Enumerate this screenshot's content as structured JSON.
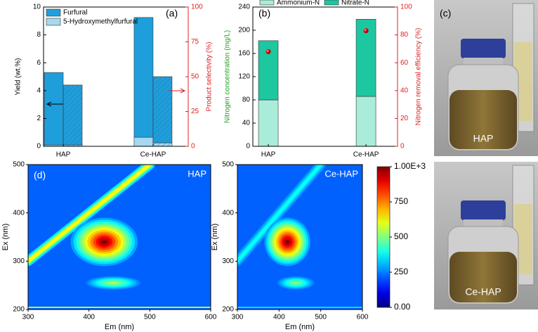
{
  "chart_data": [
    {
      "type": "bar",
      "panel": "(a)",
      "categories": [
        "HAP",
        "Ce-HAP"
      ],
      "ylabel": "Yield (wt.%)",
      "y2label": "Product selectivity (%)",
      "ylim": [
        0,
        10
      ],
      "yticks": [
        0,
        2,
        4,
        6,
        8,
        10
      ],
      "y2lim": [
        0,
        100
      ],
      "y2ticks": [
        0,
        25,
        50,
        75,
        100
      ],
      "y2color": "#e02020",
      "legend": "upper left",
      "series": [
        {
          "name": "5-Hydroxymethylfurfural",
          "color": "#a6d8ef",
          "values": [
            0.1,
            0.65
          ],
          "selectivity": [
            1,
            2.5
          ]
        },
        {
          "name": "Furfural",
          "color": "#1e9fdb",
          "values": [
            5.2,
            8.6
          ],
          "selectivity": [
            43,
            47.5
          ]
        }
      ]
    },
    {
      "type": "bar",
      "panel": "(b)",
      "categories": [
        "HAP",
        "Ce-HAP"
      ],
      "ylabel": "Nitrogen concentration (mg/L)",
      "ylabelcolor": "#22a022",
      "y2label": "Nitrogen removal efficiency (%)",
      "ylim": [
        0,
        240
      ],
      "yticks": [
        0,
        40,
        80,
        120,
        160,
        200,
        240
      ],
      "y2lim": [
        0,
        100
      ],
      "y2ticks": [
        0,
        20,
        40,
        60,
        80,
        100
      ],
      "y2color": "#e02020",
      "legend": "top",
      "series": [
        {
          "name": "Ammonium-N",
          "color": "#a9ecd9",
          "values": [
            80,
            86
          ]
        },
        {
          "name": "Nitrate-N",
          "color": "#1dc7a0",
          "values": [
            102,
            133
          ]
        }
      ],
      "efficiency": {
        "color": "#e00000",
        "values": [
          68,
          83
        ]
      }
    },
    {
      "type": "image",
      "panel": "(c)",
      "labels": [
        "HAP",
        "Ce-HAP"
      ]
    },
    {
      "type": "contour",
      "panel": "(d)",
      "label": "HAP",
      "xlabel": "Em (nm)",
      "ylabel": "Ex (nm)",
      "xlim": [
        300,
        600
      ],
      "xticks": [
        300,
        400,
        500,
        600
      ],
      "ylim": [
        200,
        500
      ],
      "yticks": [
        200,
        300,
        400,
        500
      ],
      "baseline": 220,
      "rayleigh": 620,
      "peaks": [
        {
          "em": 425,
          "ex": 340,
          "value": 1000,
          "em_width": 55,
          "ex_width": 50
        },
        {
          "em": 440,
          "ex": 255,
          "value": 560,
          "em_width": 45,
          "ex_width": 14
        }
      ]
    },
    {
      "type": "contour",
      "label": "Ce-HAP",
      "xlabel": "Em (nm)",
      "ylabel": "Ex (nm)",
      "xlim": [
        300,
        600
      ],
      "xticks": [
        300,
        400,
        500,
        600
      ],
      "ylim": [
        200,
        500
      ],
      "yticks": [
        200,
        300,
        400,
        500
      ],
      "baseline": 220,
      "rayleigh": 380,
      "peaks": [
        {
          "em": 420,
          "ex": 340,
          "value": 1000,
          "em_width": 55,
          "ex_width": 50
        },
        {
          "em": 440,
          "ex": 255,
          "value": 520,
          "em_width": 45,
          "ex_width": 14
        }
      ]
    },
    {
      "type": "colorbar",
      "clim": [
        0,
        1000
      ],
      "ticks": [
        {
          "value": 0,
          "label": "0.00"
        },
        250,
        500,
        750,
        {
          "value": 1000,
          "label": "1.00E+3"
        }
      ]
    }
  ]
}
